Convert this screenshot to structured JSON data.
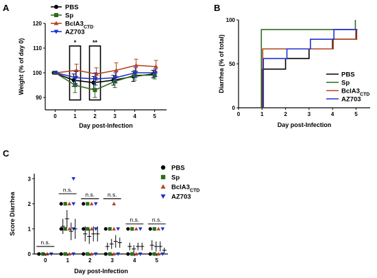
{
  "chart_data": [
    {
      "panel": "A",
      "type": "line",
      "xlabel": "Day post-Infection",
      "ylabel": "Weight (% of day 0)",
      "x": [
        0,
        1,
        2,
        3,
        4,
        5
      ],
      "xticks": [
        "0",
        "1",
        "2",
        "3",
        "4",
        "5"
      ],
      "xlim": [
        -0.5,
        5.6
      ],
      "ylim": [
        85,
        120
      ],
      "yticks": [
        90,
        100,
        110,
        120
      ],
      "annotations": [
        {
          "text": "*",
          "x": 1
        },
        {
          "text": "**",
          "x": 2
        }
      ],
      "boxes": [
        1,
        2
      ],
      "legend_position": "top-left",
      "series": [
        {
          "name": "PBS",
          "color": "#000000",
          "marker": "circle",
          "values": [
            100,
            97,
            96,
            97,
            98.5,
            99.5
          ],
          "errors": [
            0,
            2.5,
            2.5,
            2,
            2,
            1.5
          ]
        },
        {
          "name": "Sp",
          "color": "#2f6b1f",
          "marker": "square",
          "values": [
            100,
            95,
            93,
            96.5,
            99,
            99
          ],
          "errors": [
            0,
            3,
            3,
            2.5,
            2,
            1.5
          ]
        },
        {
          "name": "BclA3",
          "name_sub": "CTD",
          "color": "#b5431f",
          "marker": "triangle-up",
          "values": [
            100,
            101,
            99.5,
            101,
            103,
            102.5
          ],
          "errors": [
            0,
            2.5,
            2.5,
            3,
            2.5,
            2.5
          ]
        },
        {
          "name": "AZ703",
          "color": "#1f2fcf",
          "marker": "triangle-down",
          "values": [
            100,
            98,
            97.5,
            98,
            100,
            100
          ],
          "errors": [
            0,
            2.5,
            2.5,
            2,
            2,
            1.5
          ]
        }
      ]
    },
    {
      "panel": "B",
      "type": "line",
      "step": true,
      "xlabel": "Day post-Infection",
      "ylabel": "Diarrhea (% of total)",
      "xticks": [
        "0",
        "1",
        "2",
        "3",
        "4",
        "5"
      ],
      "xlim": [
        0,
        5.6
      ],
      "ylim": [
        0,
        100
      ],
      "yticks": [
        0,
        50,
        100
      ],
      "legend_position": "bottom-right",
      "series": [
        {
          "name": "PBS",
          "color": "#000000",
          "x": [
            1,
            1,
            2,
            3,
            4,
            5,
            5
          ],
          "values": [
            0,
            44,
            56,
            67,
            78,
            89,
            89
          ]
        },
        {
          "name": "Sp",
          "color": "#2f6b1f",
          "x": [
            1,
            1,
            5,
            5
          ],
          "values": [
            0,
            89,
            89,
            100
          ]
        },
        {
          "name": "BclA3",
          "name_sub": "CTD",
          "color": "#b5431f",
          "x": [
            1,
            1,
            3,
            4,
            5,
            5
          ],
          "values": [
            0,
            67,
            67,
            78,
            89,
            89
          ]
        },
        {
          "name": "AZ703",
          "color": "#1f2fcf",
          "x": [
            1,
            1,
            2,
            3,
            4,
            5,
            5
          ],
          "values": [
            0,
            56,
            67,
            78,
            89,
            89,
            89
          ]
        }
      ]
    },
    {
      "panel": "C",
      "type": "scatter",
      "xlabel": "Day post-Infection",
      "ylabel": "Score Diarrhea",
      "xticks": [
        "0",
        "1",
        "2",
        "3",
        "4",
        "5"
      ],
      "xlim": [
        -0.5,
        5.5
      ],
      "ylim": [
        0,
        3.2
      ],
      "yticks": [
        0,
        1,
        2,
        3
      ],
      "significance": [
        {
          "text": "n.s.",
          "day": 0
        },
        {
          "text": "n.s.",
          "day": 1
        },
        {
          "text": "n.s.",
          "day": 2
        },
        {
          "text": "n.s.",
          "day": 3
        },
        {
          "text": "n.s.",
          "day": 4
        },
        {
          "text": "n.s.",
          "day": 5
        }
      ],
      "legend_position": "top-right",
      "series": [
        {
          "name": "PBS",
          "color": "#000000",
          "marker": "circle",
          "points": [
            [
              0,
              0
            ],
            [
              1,
              2
            ],
            [
              1,
              1
            ],
            [
              1,
              0
            ],
            [
              2,
              2
            ],
            [
              2,
              1
            ],
            [
              2,
              0
            ],
            [
              3,
              1
            ],
            [
              3,
              0
            ],
            [
              4,
              1
            ],
            [
              4,
              0
            ],
            [
              5,
              1
            ],
            [
              5,
              0
            ]
          ],
          "means": [
            0,
            1.1,
            0.8,
            0.3,
            0.3,
            0.35
          ],
          "errors": [
            0,
            0.3,
            0.3,
            0.15,
            0.15,
            0.2
          ]
        },
        {
          "name": "Sp",
          "color": "#2f6b1f",
          "marker": "square",
          "points": [
            [
              0,
              0
            ],
            [
              1,
              2
            ],
            [
              1,
              1
            ],
            [
              1,
              0
            ],
            [
              2,
              2
            ],
            [
              2,
              1
            ],
            [
              2,
              0
            ],
            [
              3,
              1
            ],
            [
              3,
              0
            ],
            [
              4,
              1
            ],
            [
              4,
              0
            ],
            [
              5,
              1
            ],
            [
              5,
              0
            ]
          ],
          "means": [
            0,
            1.4,
            0.7,
            0.4,
            0.2,
            0.3
          ],
          "errors": [
            0,
            0.35,
            0.3,
            0.2,
            0.15,
            0.2
          ]
        },
        {
          "name": "BclA3",
          "name_sub": "CTD",
          "color": "#b5431f",
          "marker": "triangle-up",
          "points": [
            [
              0,
              0
            ],
            [
              1,
              2
            ],
            [
              1,
              1
            ],
            [
              1,
              0
            ],
            [
              2,
              2
            ],
            [
              2,
              1
            ],
            [
              2,
              0
            ],
            [
              3,
              2
            ],
            [
              3,
              1
            ],
            [
              3,
              0
            ],
            [
              4,
              1
            ],
            [
              4,
              0
            ],
            [
              5,
              1
            ],
            [
              5,
              0
            ]
          ],
          "means": [
            0,
            0.9,
            0.8,
            0.5,
            0.3,
            0.3
          ],
          "errors": [
            0,
            0.35,
            0.3,
            0.25,
            0.15,
            0.2
          ]
        },
        {
          "name": "AZ703",
          "color": "#1f2fcf",
          "marker": "triangle-down",
          "points": [
            [
              0,
              0
            ],
            [
              1,
              3
            ],
            [
              1,
              2
            ],
            [
              1,
              1
            ],
            [
              1,
              0
            ],
            [
              2,
              2
            ],
            [
              2,
              1
            ],
            [
              2,
              0
            ],
            [
              3,
              1
            ],
            [
              3,
              0
            ],
            [
              4,
              1
            ],
            [
              4,
              0
            ],
            [
              5,
              1
            ],
            [
              5,
              0
            ]
          ],
          "means": [
            0,
            1.0,
            0.8,
            0.45,
            0.3,
            0.15
          ],
          "errors": [
            0,
            0.4,
            0.3,
            0.2,
            0.15,
            0.1
          ]
        }
      ]
    }
  ]
}
